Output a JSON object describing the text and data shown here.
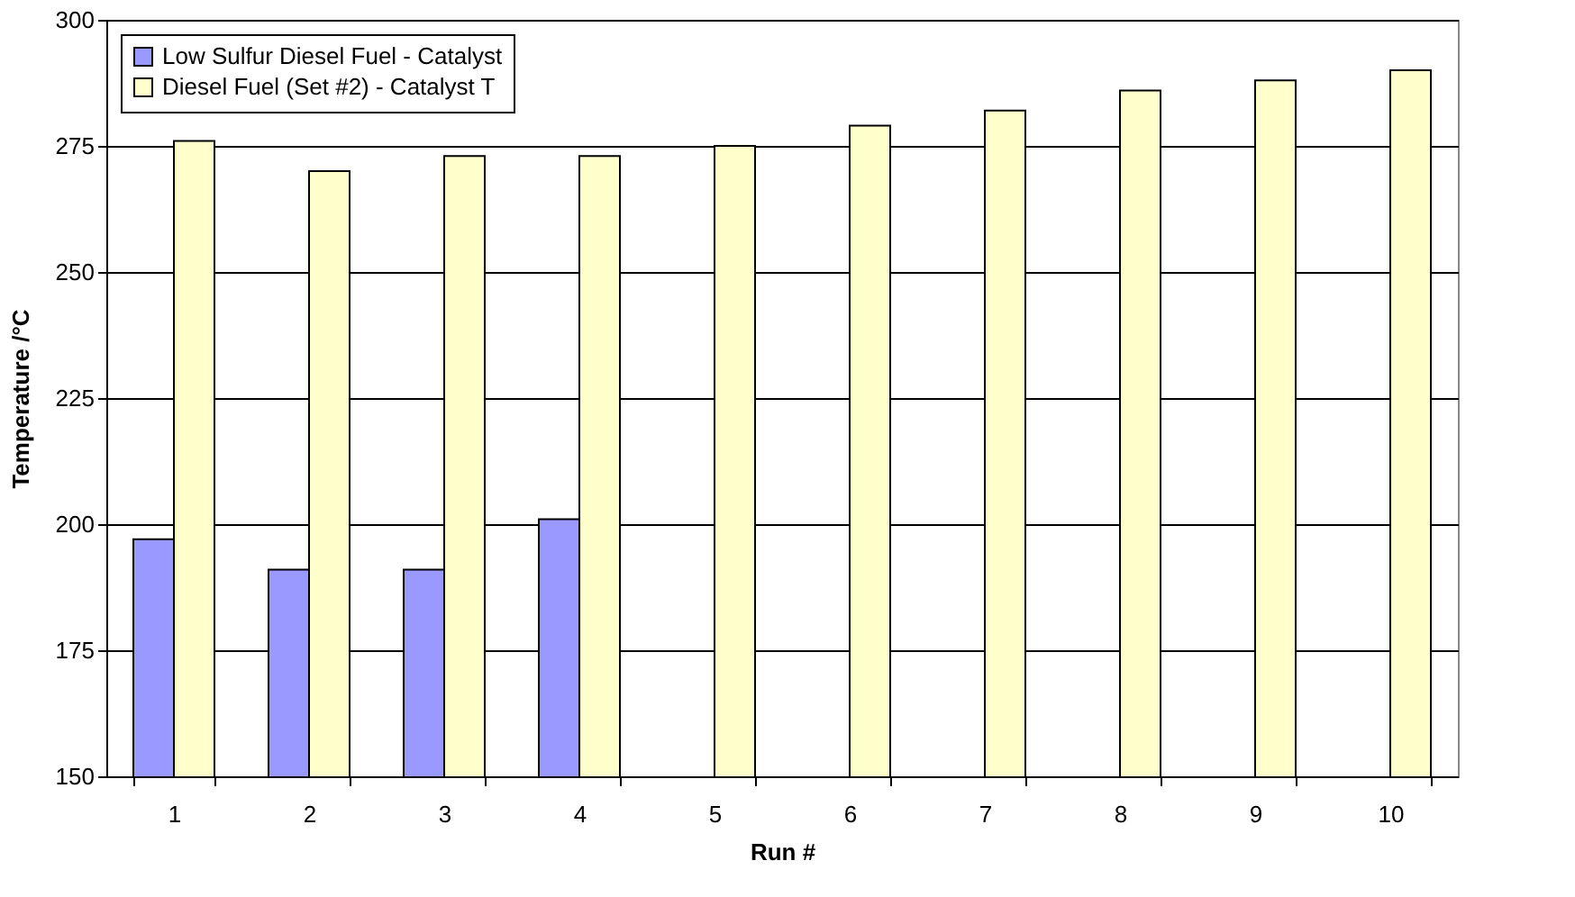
{
  "chart_data": {
    "type": "bar",
    "xlabel": "Run #",
    "ylabel": "Temperature /°C",
    "categories": [
      "1",
      "2",
      "3",
      "4",
      "5",
      "6",
      "7",
      "8",
      "9",
      "10"
    ],
    "series": [
      {
        "name": "Low Sulfur Diesel Fuel - Catalyst",
        "color": "#9999ff",
        "values": [
          197,
          191,
          191,
          201,
          null,
          null,
          null,
          null,
          null,
          null
        ]
      },
      {
        "name": "Diesel Fuel (Set #2) - Catalyst T",
        "color": "#ffffcc",
        "values": [
          276,
          270,
          273,
          273,
          275,
          279,
          282,
          286,
          288,
          290
        ]
      }
    ],
    "ylim": [
      150,
      300
    ],
    "yticks": [
      150,
      175,
      200,
      225,
      250,
      275,
      300
    ],
    "grid": "y",
    "legend": "top left"
  }
}
